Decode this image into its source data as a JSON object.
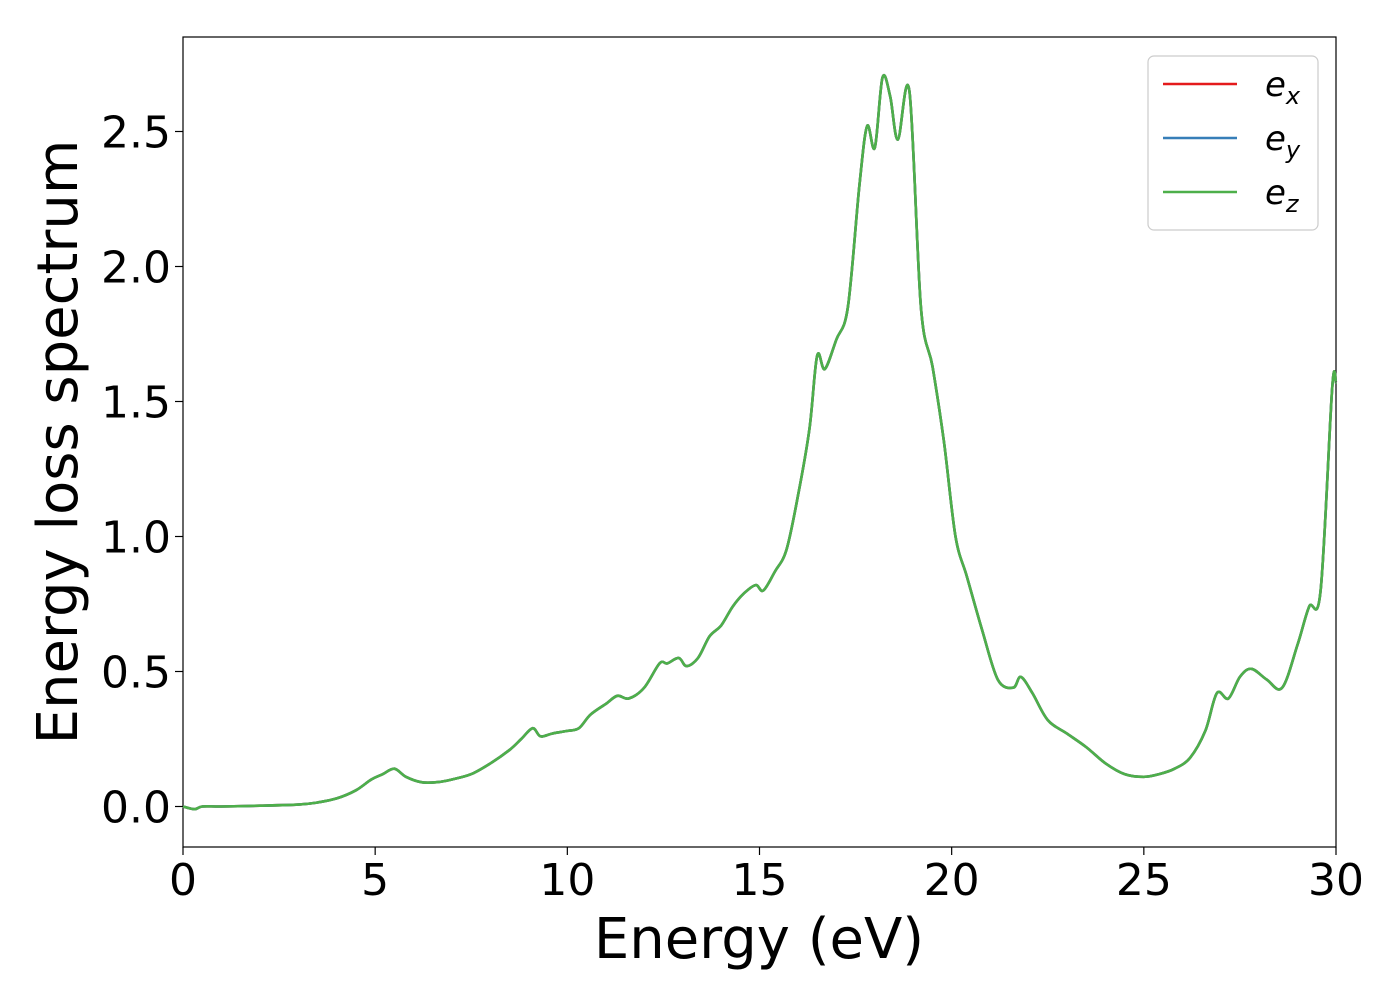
{
  "chart_data": {
    "type": "line",
    "xlabel": "Energy (eV)",
    "ylabel": "Energy loss spectrum",
    "xlim": [
      0,
      30
    ],
    "ylim": [
      -0.15,
      2.85
    ],
    "x_ticks": [
      0,
      5,
      10,
      15,
      20,
      25,
      30
    ],
    "x_tick_labels": [
      "0",
      "5",
      "10",
      "15",
      "20",
      "25",
      "30"
    ],
    "y_ticks": [
      0.0,
      0.5,
      1.0,
      1.5,
      2.0,
      2.5
    ],
    "y_tick_labels": [
      "0.0",
      "0.5",
      "1.0",
      "1.5",
      "2.0",
      "2.5"
    ],
    "grid": false,
    "legend_position": "top-right",
    "series": [
      {
        "name": "e_x",
        "label_main": "e",
        "label_sub": "x",
        "color": "#e41a1c"
      },
      {
        "name": "e_y",
        "label_main": "e",
        "label_sub": "y",
        "color": "#377eb8"
      },
      {
        "name": "e_z",
        "label_main": "e",
        "label_sub": "z",
        "color": "#4daf4a"
      }
    ],
    "x": [
      0,
      0.3,
      0.5,
      1,
      2,
      3,
      3.5,
      4,
      4.5,
      4.9,
      5.2,
      5.5,
      5.8,
      6.2,
      6.6,
      7,
      7.5,
      8,
      8.5,
      8.8,
      9.1,
      9.3,
      9.6,
      10,
      10.3,
      10.6,
      11,
      11.3,
      11.6,
      12,
      12.4,
      12.6,
      12.9,
      13.1,
      13.4,
      13.7,
      14,
      14.3,
      14.6,
      14.9,
      15.1,
      15.4,
      15.7,
      16,
      16.3,
      16.5,
      16.7,
      17,
      17.3,
      17.6,
      17.8,
      18,
      18.2,
      18.4,
      18.6,
      18.9,
      19.2,
      19.5,
      19.8,
      20.1,
      20.4,
      20.8,
      21.2,
      21.6,
      21.8,
      22.1,
      22.5,
      23,
      23.5,
      24,
      24.5,
      25,
      25.4,
      25.8,
      26.2,
      26.6,
      26.9,
      27.2,
      27.5,
      27.8,
      28.2,
      28.6,
      29,
      29.3,
      29.6,
      29.9,
      30
    ],
    "y": [
      0.0,
      -0.01,
      0.0,
      0.0,
      0.003,
      0.007,
      0.015,
      0.03,
      0.06,
      0.1,
      0.12,
      0.14,
      0.11,
      0.09,
      0.09,
      0.1,
      0.12,
      0.16,
      0.21,
      0.25,
      0.29,
      0.26,
      0.27,
      0.28,
      0.29,
      0.34,
      0.38,
      0.41,
      0.4,
      0.44,
      0.53,
      0.53,
      0.55,
      0.52,
      0.55,
      0.63,
      0.67,
      0.74,
      0.79,
      0.82,
      0.8,
      0.87,
      0.95,
      1.15,
      1.4,
      1.67,
      1.62,
      1.73,
      1.85,
      2.3,
      2.52,
      2.44,
      2.7,
      2.63,
      2.47,
      2.65,
      1.85,
      1.63,
      1.35,
      1.0,
      0.85,
      0.65,
      0.47,
      0.44,
      0.48,
      0.42,
      0.32,
      0.27,
      0.22,
      0.16,
      0.12,
      0.11,
      0.12,
      0.14,
      0.18,
      0.28,
      0.42,
      0.4,
      0.48,
      0.51,
      0.47,
      0.44,
      0.6,
      0.74,
      0.8,
      1.55,
      1.57
    ]
  }
}
